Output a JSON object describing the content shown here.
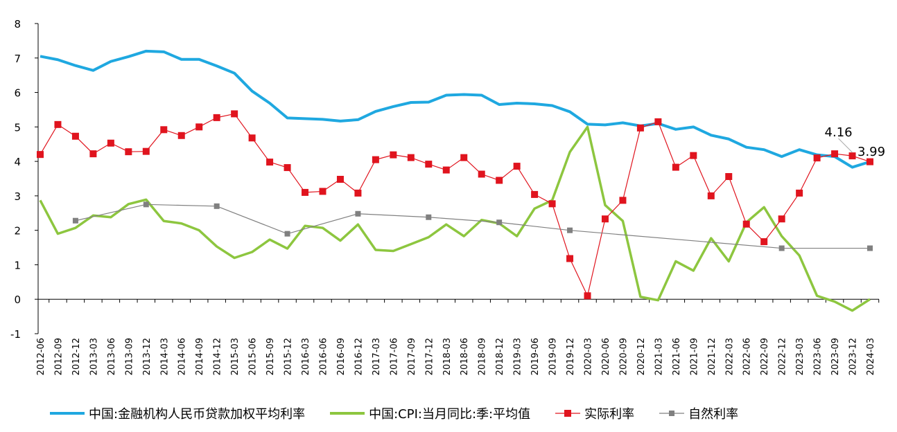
{
  "chart_data": {
    "type": "line",
    "title": "",
    "xlabel": "",
    "ylabel": "",
    "ylim": [
      -1,
      8
    ],
    "yticks": [
      "-1",
      "0",
      "1",
      "2",
      "3",
      "4",
      "5",
      "6",
      "7",
      "8"
    ],
    "categories": [
      "2012-06",
      "2012-09",
      "2012-12",
      "2013-03",
      "2013-06",
      "2013-09",
      "2013-12",
      "2014-03",
      "2014-06",
      "2014-09",
      "2014-12",
      "2015-03",
      "2015-06",
      "2015-09",
      "2015-12",
      "2016-03",
      "2016-06",
      "2016-09",
      "2016-12",
      "2017-03",
      "2017-06",
      "2017-09",
      "2017-12",
      "2018-03",
      "2018-06",
      "2018-09",
      "2018-12",
      "2019-03",
      "2019-06",
      "2019-09",
      "2019-12",
      "2020-03",
      "2020-06",
      "2020-09",
      "2020-12",
      "2021-03",
      "2021-06",
      "2021-09",
      "2021-12",
      "2022-03",
      "2022-06",
      "2022-09",
      "2022-12",
      "2023-03",
      "2023-06",
      "2023-09",
      "2023-12",
      "2024-03"
    ],
    "series": [
      {
        "name": "中国:金融机构人民币贷款加权平均利率",
        "color": "#1FA8E0",
        "marker": "none",
        "values": [
          7.05,
          6.95,
          6.78,
          6.64,
          6.9,
          7.04,
          7.2,
          7.18,
          6.96,
          6.96,
          6.77,
          6.56,
          6.04,
          5.69,
          5.26,
          5.24,
          5.22,
          5.17,
          5.21,
          5.45,
          5.59,
          5.71,
          5.72,
          5.92,
          5.94,
          5.92,
          5.65,
          5.69,
          5.67,
          5.62,
          5.44,
          5.08,
          5.06,
          5.12,
          5.03,
          5.1,
          4.93,
          5.0,
          4.76,
          4.65,
          4.41,
          4.34,
          4.14,
          4.34,
          4.19,
          4.14,
          3.83,
          3.99
        ]
      },
      {
        "name": "中国:CPI:当月同比:季:平均值",
        "color": "#8DC63F",
        "marker": "none",
        "values": [
          2.87,
          1.9,
          2.07,
          2.43,
          2.38,
          2.76,
          2.89,
          2.27,
          2.2,
          2.0,
          1.53,
          1.2,
          1.37,
          1.73,
          1.47,
          2.13,
          2.07,
          1.7,
          2.17,
          1.43,
          1.4,
          1.6,
          1.8,
          2.17,
          1.83,
          2.3,
          2.2,
          1.83,
          2.63,
          2.87,
          4.27,
          5.0,
          2.73,
          2.27,
          0.07,
          -0.03,
          1.1,
          0.83,
          1.77,
          1.1,
          2.23,
          2.67,
          1.83,
          1.27,
          0.1,
          -0.07,
          -0.33,
          0.0
        ]
      },
      {
        "name": "实际利率",
        "color": "#E0141E",
        "marker": "square",
        "values": [
          4.2,
          5.07,
          4.73,
          4.22,
          4.53,
          4.28,
          4.29,
          4.92,
          4.75,
          5.0,
          5.27,
          5.38,
          4.68,
          3.98,
          3.82,
          3.1,
          3.13,
          3.48,
          3.08,
          4.05,
          4.19,
          4.11,
          3.92,
          3.75,
          4.11,
          3.63,
          3.45,
          3.86,
          3.04,
          2.77,
          1.18,
          0.1,
          2.33,
          2.87,
          4.97,
          5.15,
          3.83,
          4.17,
          3.0,
          3.56,
          2.18,
          1.67,
          2.33,
          3.08,
          4.1,
          4.22,
          4.16,
          3.99
        ]
      },
      {
        "name": "自然利率",
        "color": "#808080",
        "marker": "square",
        "values": [
          null,
          null,
          2.28,
          null,
          null,
          null,
          2.75,
          null,
          null,
          null,
          2.7,
          null,
          null,
          null,
          1.9,
          null,
          null,
          null,
          2.48,
          null,
          null,
          null,
          2.38,
          null,
          null,
          null,
          2.23,
          null,
          null,
          null,
          2.0,
          null,
          null,
          null,
          null,
          null,
          null,
          null,
          null,
          null,
          null,
          null,
          1.48,
          null,
          null,
          null,
          null,
          1.48
        ]
      }
    ],
    "annotations": [
      {
        "text": "4.16",
        "category": "2023-12",
        "series": "实际利率"
      },
      {
        "text": "3.99",
        "category": "2024-03",
        "series": "实际利率"
      }
    ],
    "grid": false,
    "legend_position": "bottom"
  }
}
